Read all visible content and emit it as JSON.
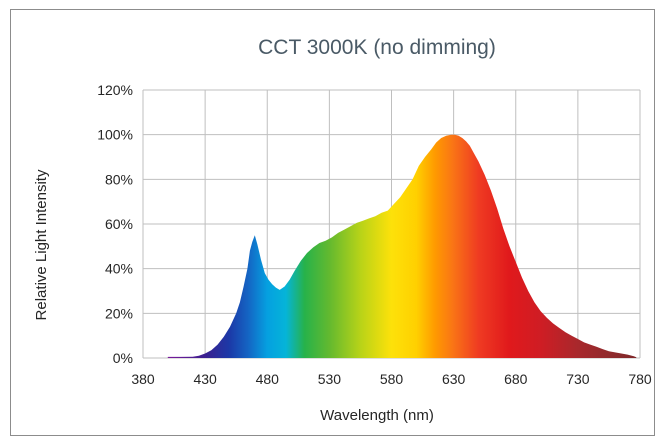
{
  "chart_data": {
    "type": "area",
    "title": "CCT 3000K (no dimming)",
    "xlabel": "Wavelength (nm)",
    "ylabel": "Relative Light Intensity",
    "xlim": [
      380,
      780
    ],
    "ylim": [
      0,
      120
    ],
    "x_ticks": [
      380,
      430,
      480,
      530,
      580,
      630,
      680,
      730,
      780
    ],
    "y_ticks": [
      0,
      20,
      40,
      60,
      80,
      100,
      120
    ],
    "y_tick_labels": [
      "0%",
      "20%",
      "40%",
      "60%",
      "80%",
      "100%",
      "120%"
    ],
    "grid": true,
    "series": [
      {
        "x": [
          400,
          410,
          420,
          425,
          430,
          435,
          440,
          445,
          450,
          455,
          458,
          461,
          464,
          466,
          468,
          470,
          472,
          475,
          478,
          481,
          484,
          487,
          490,
          494,
          498,
          502,
          507,
          512,
          517,
          522,
          527,
          532,
          537,
          542,
          547,
          552,
          557,
          562,
          567,
          572,
          577,
          582,
          587,
          592,
          597,
          602,
          607,
          612,
          616,
          620,
          624,
          628,
          631,
          634,
          637,
          640,
          643,
          646,
          650,
          655,
          660,
          665,
          670,
          675,
          680,
          685,
          690,
          695,
          700,
          705,
          710,
          715,
          720,
          725,
          730,
          735,
          740,
          745,
          750,
          755,
          760,
          765,
          770,
          775,
          777
        ],
        "y": [
          0.5,
          0.5,
          0.6,
          1,
          2,
          3.5,
          6,
          9.5,
          14,
          20,
          25,
          32,
          40,
          48,
          52,
          55,
          51,
          44,
          38,
          35,
          33,
          31.5,
          30.5,
          32,
          35,
          39,
          43.5,
          47,
          49.5,
          51.5,
          52.5,
          54,
          56,
          57.5,
          59,
          60.5,
          61.5,
          62.5,
          63.5,
          65,
          66,
          69,
          72,
          76,
          80,
          86,
          90,
          93.5,
          96.5,
          98.5,
          99.5,
          100,
          100,
          99.5,
          98.5,
          97,
          95,
          92,
          88,
          82,
          75,
          67,
          58,
          50,
          43,
          36,
          30,
          25,
          21,
          18,
          15.5,
          13.5,
          11.5,
          10,
          8.5,
          7,
          6,
          5,
          4,
          3,
          2.5,
          2,
          1.5,
          0.8,
          0.3
        ]
      }
    ]
  }
}
